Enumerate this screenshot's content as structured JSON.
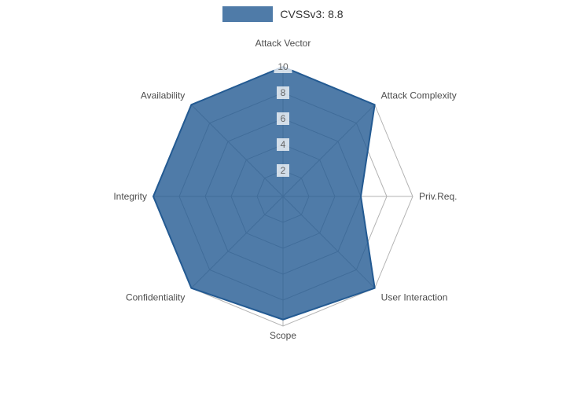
{
  "legend": {
    "label": "CVSSv3: 8.8"
  },
  "chart_data": {
    "type": "radar",
    "title": "",
    "categories": [
      "Attack Vector",
      "Attack Complexity",
      "Priv.Req.",
      "User Interaction",
      "Scope",
      "Confidentiality",
      "Integrity",
      "Availability"
    ],
    "series": [
      {
        "name": "CVSSv3: 8.8",
        "values": [
          10,
          10,
          6,
          10,
          9.5,
          10,
          10,
          10
        ]
      }
    ],
    "ticks": [
      2,
      4,
      6,
      8,
      10
    ],
    "rmin": 0,
    "rmax": 10,
    "grid": true,
    "legend_position": "top",
    "colors": {
      "fill": "#235a92",
      "fill_opacity": 0.8,
      "stroke": "#235a92",
      "grid": "#b3b3b3",
      "axis_label": "#4d4d4d",
      "tick_label": "#666666",
      "tick_backdrop": "rgba(255,255,255,0.75)",
      "legend_text": "#333333"
    }
  }
}
